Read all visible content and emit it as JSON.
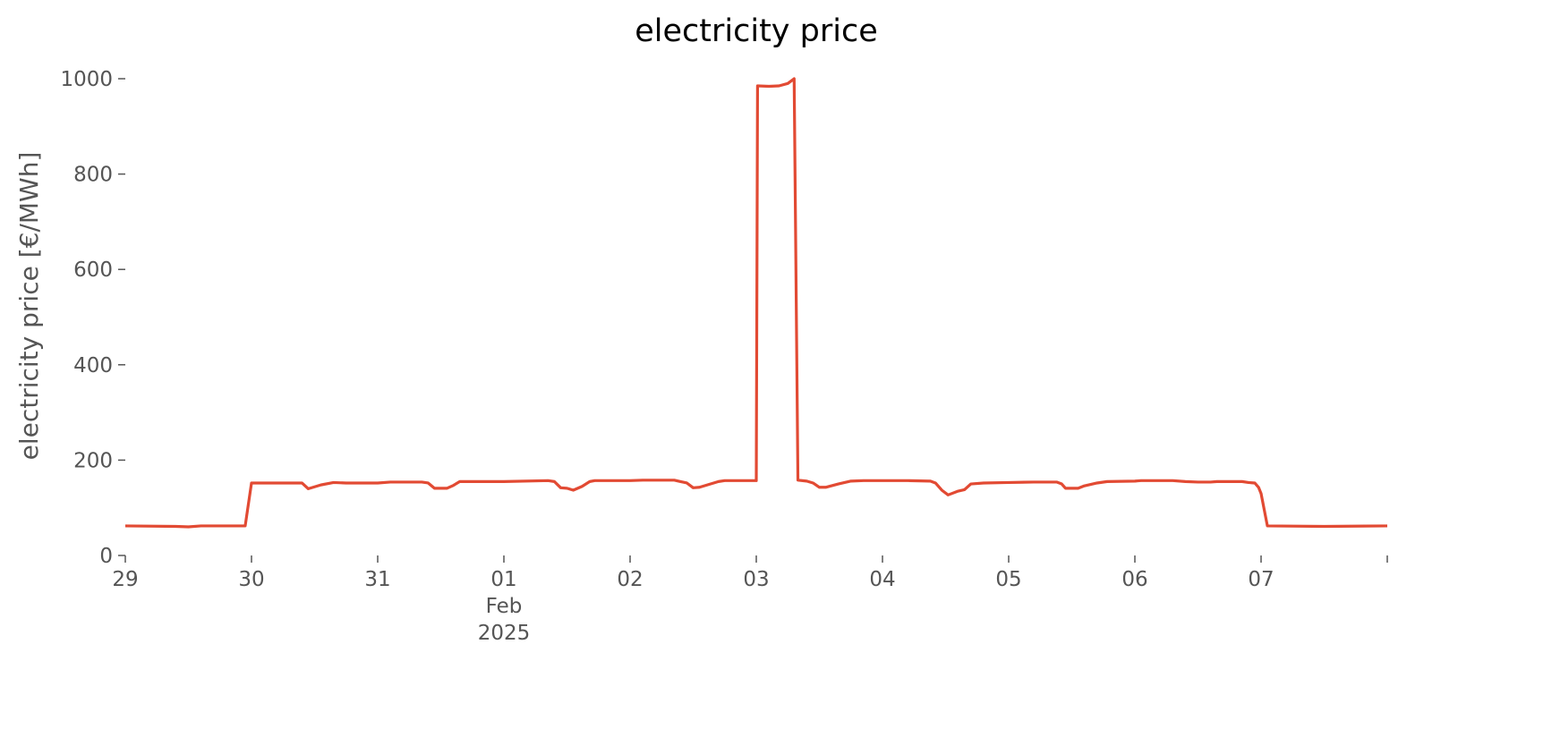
{
  "chart_data": {
    "type": "line",
    "title": "electricity price",
    "y_label": "electricity price [€/MWh]",
    "color": "#e24a33",
    "x": [
      29.0,
      29.4,
      29.5,
      29.6,
      29.95,
      30.0,
      30.4,
      30.45,
      30.55,
      30.65,
      30.75,
      31.0,
      31.1,
      31.35,
      31.4,
      31.45,
      31.55,
      31.6,
      31.65,
      32.0,
      32.35,
      32.4,
      32.45,
      32.5,
      32.55,
      32.62,
      32.68,
      32.72,
      33.0,
      33.1,
      33.35,
      33.4,
      33.45,
      33.5,
      33.55,
      33.7,
      33.75,
      33.95,
      34.0,
      34.01,
      34.1,
      34.18,
      34.25,
      34.3,
      34.33,
      34.4,
      34.45,
      34.5,
      34.55,
      34.65,
      34.75,
      34.85,
      35.0,
      35.2,
      35.38,
      35.42,
      35.47,
      35.52,
      35.6,
      35.65,
      35.7,
      35.8,
      36.0,
      36.2,
      36.38,
      36.42,
      36.45,
      36.55,
      36.6,
      36.7,
      36.78,
      37.0,
      37.05,
      37.3,
      37.4,
      37.5,
      37.6,
      37.65,
      37.85,
      37.9,
      37.95,
      37.98,
      38.0,
      38.05,
      38.5,
      39.0
    ],
    "values": [
      62,
      61,
      60,
      62,
      62,
      152,
      152,
      140,
      148,
      153,
      152,
      152,
      154,
      154,
      152,
      141,
      141,
      147,
      155,
      155,
      157,
      155,
      142,
      141,
      137,
      145,
      155,
      157,
      157,
      158,
      158,
      155,
      152,
      142,
      143,
      155,
      157,
      157,
      157,
      985,
      984,
      985,
      990,
      1000,
      158,
      156,
      152,
      143,
      143,
      150,
      156,
      157,
      157,
      157,
      156,
      152,
      137,
      127,
      135,
      138,
      150,
      152,
      153,
      154,
      154,
      150,
      141,
      141,
      146,
      152,
      155,
      156,
      157,
      157,
      155,
      154,
      154,
      155,
      155,
      153,
      152,
      143,
      130,
      62,
      61,
      62
    ],
    "xlim": [
      29,
      39
    ],
    "xticks": [
      29,
      30,
      31,
      {
        "value": 32,
        "label": "01\nFeb\n2025"
      },
      {
        "value": 33,
        "label": "02"
      },
      {
        "value": 34,
        "label": "03"
      },
      {
        "value": 35,
        "label": "04"
      },
      {
        "value": 36,
        "label": "05"
      },
      {
        "value": 37,
        "label": "06"
      },
      {
        "value": 38,
        "label": "07"
      },
      {
        "value": 39,
        "label": null
      }
    ],
    "ylim": [
      0,
      1000
    ],
    "yticks": [
      0,
      200,
      400,
      600,
      800,
      1000
    ]
  }
}
